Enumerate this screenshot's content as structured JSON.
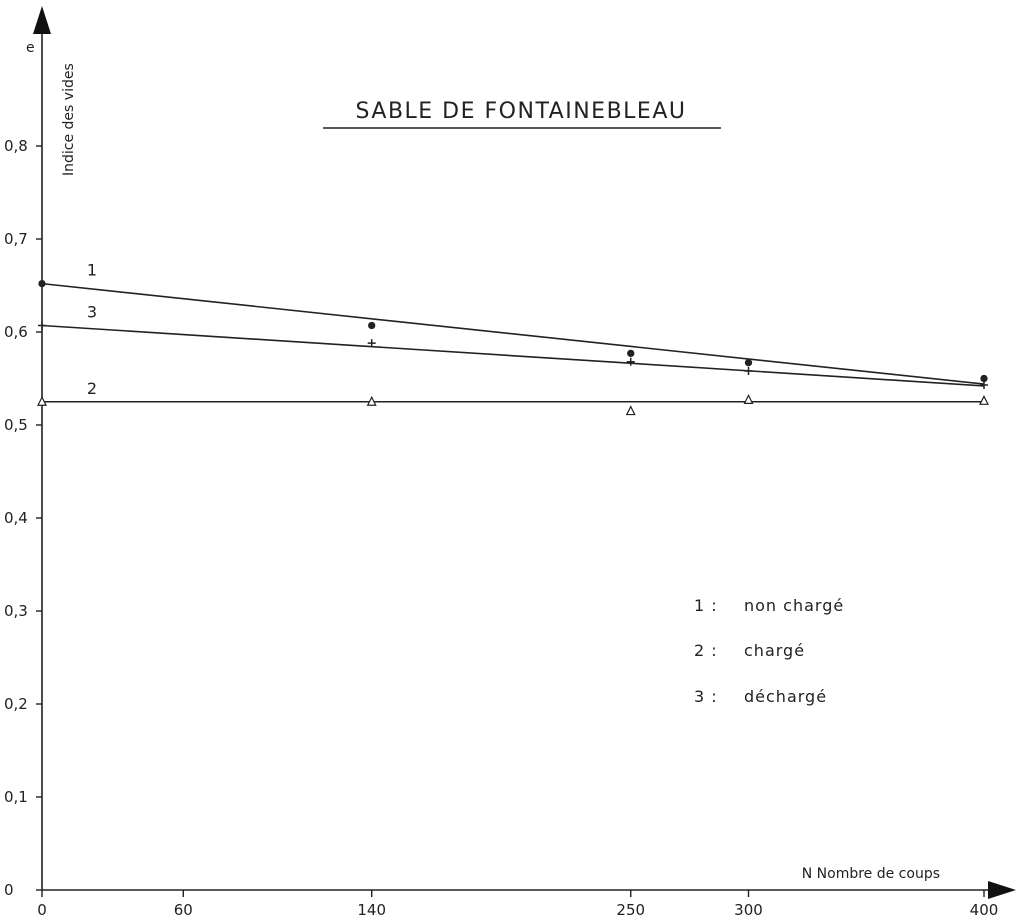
{
  "chart_data": {
    "type": "scatter",
    "title": "SABLE DE FONTAINEBLEAU",
    "ylabel_symbol": "e",
    "ylabel": "Indice des vides",
    "xlabel": "N Nombre de coups",
    "x_ticks": [
      "0",
      "60",
      "140",
      "250",
      "300",
      "400"
    ],
    "x_tick_values": [
      0,
      60,
      140,
      250,
      300,
      400
    ],
    "y_ticks": [
      "0",
      "0,1",
      "0,2",
      "0,3",
      "0,4",
      "0,5",
      "0,6",
      "0,7",
      "0,8"
    ],
    "y_tick_values": [
      0,
      0.1,
      0.2,
      0.3,
      0.4,
      0.5,
      0.6,
      0.7,
      0.8
    ],
    "xlim": [
      0,
      400
    ],
    "ylim": [
      0,
      0.9
    ],
    "grid": false,
    "legend_position": "right",
    "series": [
      {
        "name": "1",
        "legend": "1: non chargé",
        "marker": "dot",
        "x": [
          0,
          140,
          250,
          300,
          400
        ],
        "y": [
          0.652,
          0.607,
          0.577,
          0.567,
          0.55
        ],
        "fit": [
          [
            0,
            0.652
          ],
          [
            400,
            0.544
          ]
        ]
      },
      {
        "name": "2",
        "legend": "2: chargé",
        "marker": "triangle",
        "x": [
          0,
          140,
          250,
          300,
          400
        ],
        "y": [
          0.525,
          0.525,
          0.515,
          0.527,
          0.526
        ],
        "fit": [
          [
            0,
            0.525
          ],
          [
            400,
            0.525
          ]
        ]
      },
      {
        "name": "3",
        "legend": "3: déchargé",
        "marker": "plus",
        "x": [
          0,
          140,
          250,
          300,
          400
        ],
        "y": [
          0.607,
          0.588,
          0.568,
          0.558,
          0.543
        ],
        "fit": [
          [
            0,
            0.607
          ],
          [
            400,
            0.542
          ]
        ]
      }
    ]
  },
  "legend_lines": [
    {
      "num": "1 :",
      "text": "non  chargé"
    },
    {
      "num": "2 :",
      "text": "chargé"
    },
    {
      "num": "3 :",
      "text": "déchargé"
    }
  ]
}
